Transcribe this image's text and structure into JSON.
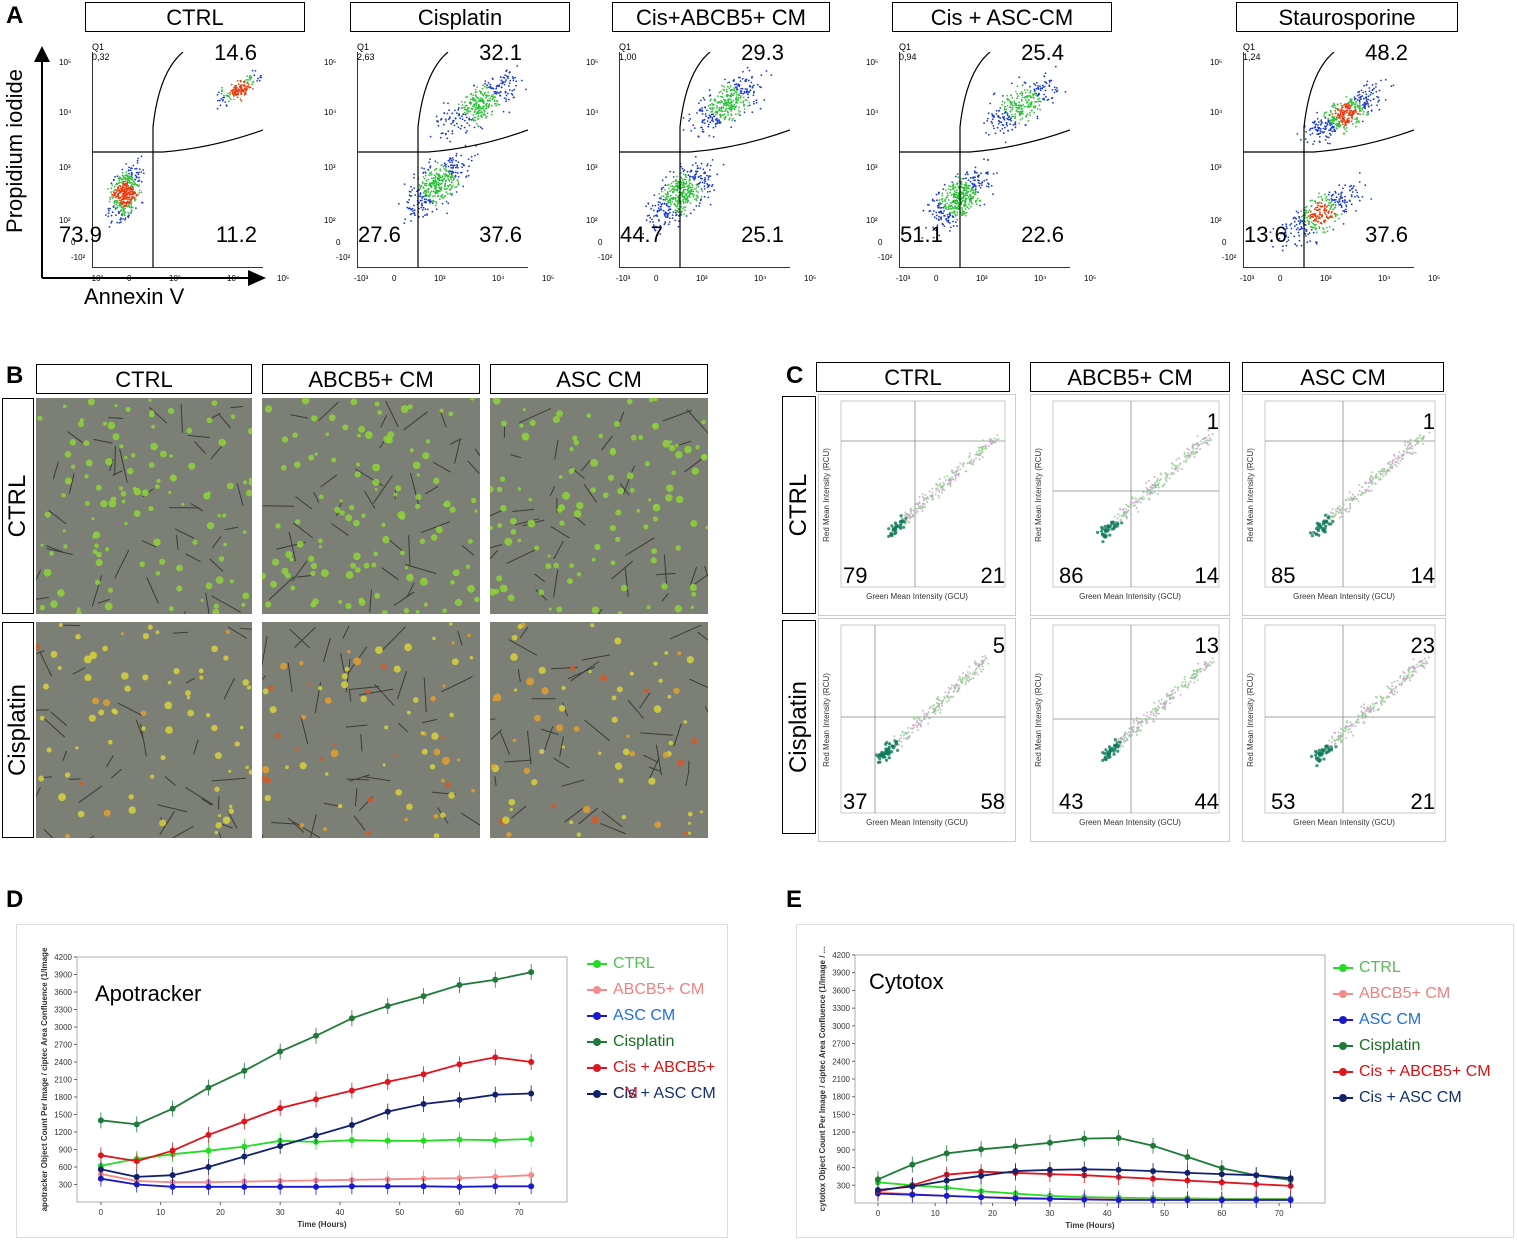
{
  "panel_letters": {
    "a": "A",
    "b": "B",
    "c": "C",
    "d": "D",
    "e": "E"
  },
  "panelA": {
    "y_axis_label": "Propidium iodide",
    "x_axis_label": "Annexin V",
    "y_ticks": [
      "10⁵",
      "10⁴",
      "10³",
      "10²",
      "0",
      "-10²"
    ],
    "x_ticks": [
      "-10³",
      "0",
      "10³",
      "10⁴",
      "10⁵"
    ],
    "plots": [
      {
        "title": "CTRL",
        "q1_label": "Q1",
        "q1_value": "0,32",
        "upper_right": "14.6",
        "lower_left": "73.9",
        "lower_right": "11.2"
      },
      {
        "title": "Cisplatin",
        "q1_label": "Q1",
        "q1_value": "2,63",
        "upper_right": "32.1",
        "lower_left": "27.6",
        "lower_right": "37.6"
      },
      {
        "title": "Cis+ABCB5+ CM",
        "q1_label": "Q1",
        "q1_value": "1,00",
        "upper_right": "29.3",
        "lower_left": "44.7",
        "lower_right": "25.1"
      },
      {
        "title": "Cis + ASC-CM",
        "q1_label": "Q1",
        "q1_value": "0,94",
        "upper_right": "25.4",
        "lower_left": "51.1",
        "lower_right": "22.6"
      },
      {
        "title": "Staurosporine",
        "q1_label": "Q1",
        "q1_value": "1,24",
        "upper_right": "48.2",
        "lower_left": "13.6",
        "lower_right": "37.6"
      }
    ]
  },
  "panelB": {
    "columns": [
      "CTRL",
      "ABCB5+ CM",
      "ASC CM"
    ],
    "rows": [
      "CTRL",
      "Cisplatin"
    ]
  },
  "panelC": {
    "columns": [
      "CTRL",
      "ABCB5+ CM",
      "ASC CM"
    ],
    "rows": [
      "CTRL",
      "Cisplatin"
    ],
    "x_axis_label": "Green Mean Intensity (GCU)",
    "y_axis_label": "Red Mean Intensity (RCU)",
    "plots": [
      {
        "ur": "",
        "ll": "79",
        "lr": "21"
      },
      {
        "ur": "1",
        "ll": "86",
        "lr": "14"
      },
      {
        "ur": "1",
        "ll": "85",
        "lr": "14"
      },
      {
        "ur": "5",
        "ll": "37",
        "lr": "58"
      },
      {
        "ur": "13",
        "ll": "43",
        "lr": "44"
      },
      {
        "ur": "23",
        "ll": "53",
        "lr": "21"
      }
    ]
  },
  "colors": {
    "CTRL": "#22dd22",
    "ABCB5+ CM": "#f48a8a",
    "ASC CM": "#1a1acc",
    "Cisplatin": "#1f7a3a",
    "Cis + ABCB5+ CM": "#e0141e",
    "Cis + ASC CM": "#12206e"
  },
  "legend_text_colors": {
    "CTRL": "#55c050",
    "ABCB5+ CM": "#f08080",
    "ASC CM": "#1e6ee6",
    "Cisplatin": "#17701f",
    "Cis + ABCB5+ CM": "#e01010",
    "Cis + ASC CM": "#12306e"
  },
  "chart_data": [
    {
      "type": "line",
      "title": "Apotracker",
      "xlabel": "Time (Hours)",
      "ylabel": "apotracker  Object Count Per Image / ciptec  Area Confluence (1/Image",
      "x": [
        0,
        6,
        12,
        18,
        24,
        30,
        36,
        42,
        48,
        54,
        60,
        66,
        72
      ],
      "xlim": [
        -4,
        78
      ],
      "ylim": [
        0,
        4200
      ],
      "yticks": [
        300,
        600,
        900,
        1200,
        1500,
        1800,
        2100,
        2400,
        2700,
        3000,
        3300,
        3600,
        3900,
        4200
      ],
      "xticks": [
        0,
        10,
        20,
        30,
        40,
        50,
        60,
        70
      ],
      "series": [
        {
          "name": "CTRL",
          "values": [
            620,
            740,
            820,
            880,
            950,
            1050,
            1030,
            1060,
            1050,
            1050,
            1070,
            1060,
            1080
          ]
        },
        {
          "name": "ABCB5+ CM",
          "values": [
            480,
            360,
            340,
            340,
            350,
            360,
            370,
            380,
            390,
            400,
            410,
            430,
            460
          ]
        },
        {
          "name": "ASC CM",
          "values": [
            400,
            300,
            260,
            260,
            260,
            260,
            260,
            270,
            270,
            270,
            260,
            270,
            270
          ]
        },
        {
          "name": "Cisplatin",
          "values": [
            1400,
            1330,
            1600,
            1960,
            2250,
            2580,
            2850,
            3150,
            3360,
            3530,
            3720,
            3810,
            3940
          ]
        },
        {
          "name": "Cis + ABCB5+ CM",
          "values": [
            800,
            700,
            880,
            1150,
            1380,
            1610,
            1760,
            1910,
            2060,
            2190,
            2360,
            2480,
            2400
          ]
        },
        {
          "name": "Cis + ASC CM",
          "values": [
            560,
            430,
            460,
            600,
            780,
            960,
            1140,
            1320,
            1550,
            1680,
            1750,
            1840,
            1860
          ]
        }
      ]
    },
    {
      "type": "line",
      "title": "Cytotox",
      "xlabel": "Time (Hours)",
      "ylabel": "cytotox  Object Count Per Image / ciptec  Area Confluence (1/Image / ...",
      "x": [
        0,
        6,
        12,
        18,
        24,
        30,
        36,
        42,
        48,
        54,
        60,
        66,
        72
      ],
      "xlim": [
        -4,
        78
      ],
      "ylim": [
        0,
        4200
      ],
      "yticks": [
        300,
        600,
        900,
        1200,
        1500,
        1800,
        2100,
        2400,
        2700,
        3000,
        3300,
        3600,
        3900,
        4200
      ],
      "xticks": [
        0,
        10,
        20,
        30,
        40,
        50,
        60,
        70
      ],
      "series": [
        {
          "name": "CTRL",
          "values": [
            350,
            300,
            260,
            200,
            160,
            120,
            100,
            90,
            80,
            80,
            70,
            70,
            70
          ]
        },
        {
          "name": "ABCB5+ CM",
          "values": [
            180,
            150,
            120,
            100,
            90,
            80,
            70,
            60,
            60,
            60,
            60,
            60,
            60
          ]
        },
        {
          "name": "ASC CM",
          "values": [
            160,
            140,
            120,
            100,
            80,
            70,
            60,
            50,
            50,
            50,
            50,
            50,
            50
          ]
        },
        {
          "name": "Cisplatin",
          "values": [
            400,
            650,
            840,
            910,
            960,
            1020,
            1090,
            1100,
            970,
            780,
            590,
            470,
            390
          ]
        },
        {
          "name": "Cis + ABCB5+ CM",
          "values": [
            200,
            300,
            480,
            530,
            510,
            490,
            470,
            440,
            410,
            380,
            350,
            320,
            290
          ]
        },
        {
          "name": "Cis + ASC CM",
          "values": [
            220,
            280,
            380,
            460,
            540,
            560,
            570,
            560,
            540,
            510,
            490,
            470,
            420
          ]
        }
      ]
    }
  ]
}
